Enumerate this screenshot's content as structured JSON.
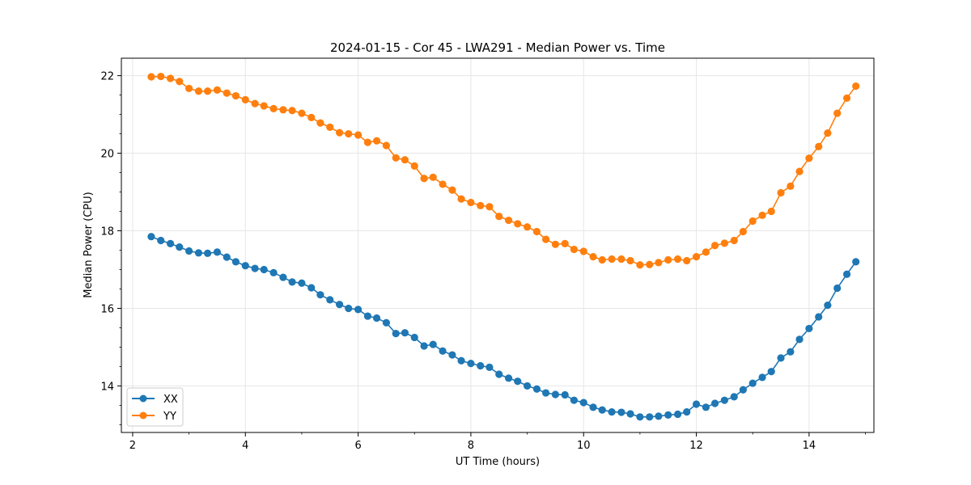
{
  "chart_data": {
    "type": "line",
    "title": "2024-01-15 - Cor 45 - LWA291 - Median Power vs. Time",
    "xlabel": "UT Time (hours)",
    "ylabel": "Median Power (CPU)",
    "xlim": [
      1.8,
      15.15
    ],
    "ylim": [
      12.8,
      22.45
    ],
    "xticks": [
      2,
      4,
      6,
      8,
      10,
      12,
      14
    ],
    "yticks": [
      14,
      16,
      18,
      20,
      22
    ],
    "grid": true,
    "legend_position": "lower-left",
    "x": [
      2.33,
      2.5,
      2.67,
      2.83,
      3.0,
      3.17,
      3.33,
      3.5,
      3.67,
      3.83,
      4.0,
      4.17,
      4.33,
      4.5,
      4.67,
      4.83,
      5.0,
      5.17,
      5.33,
      5.5,
      5.67,
      5.83,
      6.0,
      6.17,
      6.33,
      6.5,
      6.67,
      6.83,
      7.0,
      7.17,
      7.33,
      7.5,
      7.67,
      7.83,
      8.0,
      8.17,
      8.33,
      8.5,
      8.67,
      8.83,
      9.0,
      9.17,
      9.33,
      9.5,
      9.67,
      9.83,
      10.0,
      10.17,
      10.33,
      10.5,
      10.67,
      10.83,
      11.0,
      11.17,
      11.33,
      11.5,
      11.67,
      11.83,
      12.0,
      12.17,
      12.33,
      12.5,
      12.67,
      12.83,
      13.0,
      13.17,
      13.33,
      13.5,
      13.67,
      13.83,
      14.0,
      14.17,
      14.33,
      14.5,
      14.67,
      14.83
    ],
    "series": [
      {
        "name": "XX",
        "color": "#1f77b4",
        "values": [
          17.85,
          17.75,
          17.67,
          17.58,
          17.48,
          17.43,
          17.42,
          17.45,
          17.32,
          17.2,
          17.1,
          17.03,
          17.0,
          16.92,
          16.8,
          16.68,
          16.65,
          16.53,
          16.35,
          16.22,
          16.1,
          16.0,
          15.97,
          15.8,
          15.75,
          15.63,
          15.35,
          15.37,
          15.25,
          15.03,
          15.07,
          14.9,
          14.8,
          14.65,
          14.58,
          14.52,
          14.48,
          14.3,
          14.2,
          14.12,
          14.0,
          13.92,
          13.82,
          13.78,
          13.77,
          13.63,
          13.57,
          13.45,
          13.38,
          13.33,
          13.32,
          13.28,
          13.2,
          13.2,
          13.22,
          13.25,
          13.27,
          13.33,
          13.53,
          13.45,
          13.55,
          13.63,
          13.72,
          13.9,
          14.07,
          14.22,
          14.37,
          14.72,
          14.88,
          15.2,
          15.48,
          15.78,
          16.08,
          16.52,
          16.88,
          17.2
        ]
      },
      {
        "name": "YY",
        "color": "#ff7f0e",
        "values": [
          21.97,
          21.98,
          21.93,
          21.85,
          21.67,
          21.6,
          21.6,
          21.63,
          21.55,
          21.48,
          21.38,
          21.28,
          21.22,
          21.15,
          21.12,
          21.1,
          21.03,
          20.92,
          20.78,
          20.67,
          20.53,
          20.5,
          20.47,
          20.28,
          20.32,
          20.2,
          19.88,
          19.83,
          19.67,
          19.35,
          19.38,
          19.2,
          19.05,
          18.82,
          18.73,
          18.65,
          18.62,
          18.37,
          18.27,
          18.18,
          18.1,
          17.98,
          17.78,
          17.65,
          17.67,
          17.52,
          17.47,
          17.33,
          17.25,
          17.27,
          17.27,
          17.23,
          17.12,
          17.13,
          17.18,
          17.25,
          17.27,
          17.23,
          17.33,
          17.45,
          17.62,
          17.68,
          17.75,
          17.98,
          18.25,
          18.4,
          18.5,
          18.98,
          19.15,
          19.53,
          19.87,
          20.17,
          20.52,
          21.03,
          21.42,
          21.73
        ]
      }
    ]
  }
}
